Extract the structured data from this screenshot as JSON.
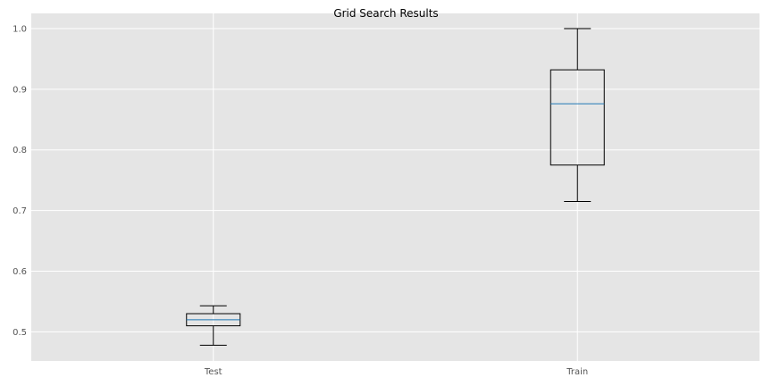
{
  "chart_data": {
    "type": "box",
    "title": "Grid Search Results",
    "xlabel": "",
    "ylabel": "",
    "categories": [
      "Test",
      "Train"
    ],
    "boxes": [
      {
        "label": "Test",
        "whisker_low": 0.478,
        "q1": 0.51,
        "median": 0.52,
        "q3": 0.53,
        "whisker_high": 0.543
      },
      {
        "label": "Train",
        "whisker_low": 0.715,
        "q1": 0.775,
        "median": 0.876,
        "q3": 0.932,
        "whisker_high": 1.0
      }
    ],
    "ylim": [
      0.452,
      1.025
    ],
    "yticks": [
      0.5,
      0.6,
      0.7,
      0.8,
      0.9,
      1.0
    ],
    "ytick_labels": [
      "0.5",
      "0.6",
      "0.7",
      "0.8",
      "0.9",
      "1.0"
    ],
    "grid": true,
    "colors": {
      "plot_background": "#e5e5e5",
      "grid": "#ffffff",
      "box": "#000000",
      "median": "#1f77b4",
      "tick_label": "#555555"
    }
  }
}
